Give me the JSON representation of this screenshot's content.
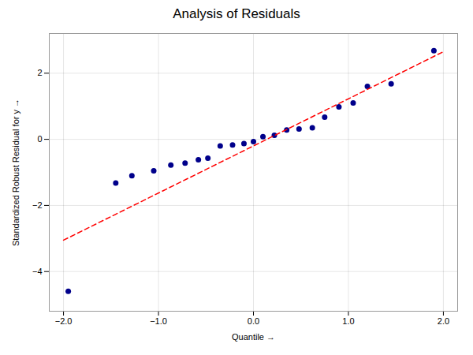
{
  "chart_data": {
    "type": "scatter",
    "title": "Analysis of Residuals",
    "xlabel": "Quantile",
    "ylabel": "Standardized Robust Residual for y",
    "series": [
      {
        "type": "scatter",
        "color": "#00008B",
        "x": [
          -1.95,
          -1.45,
          -1.28,
          -1.05,
          -0.87,
          -0.72,
          -0.58,
          -0.48,
          -0.35,
          -0.22,
          -0.1,
          0.0,
          0.1,
          0.22,
          0.35,
          0.48,
          0.62,
          0.75,
          0.9,
          1.05,
          1.2,
          1.45,
          1.9
        ],
        "values": [
          -4.6,
          -1.32,
          -1.1,
          -0.95,
          -0.78,
          -0.72,
          -0.62,
          -0.57,
          -0.2,
          -0.17,
          -0.13,
          -0.07,
          0.08,
          0.12,
          0.28,
          0.31,
          0.35,
          0.67,
          0.98,
          1.1,
          1.6,
          1.68,
          2.68
        ]
      },
      {
        "type": "line",
        "color": "#FF0000",
        "line_style": "dashed",
        "x": [
          -2.0,
          2.0
        ],
        "values": [
          -3.05,
          2.65
        ]
      }
    ],
    "xlim": [
      -2.15,
      2.15
    ],
    "ylim": [
      -5.2,
      3.2
    ],
    "xticks": [
      -2,
      -1,
      0,
      1,
      2
    ],
    "yticks": [
      -4,
      -2,
      0,
      2
    ],
    "grid": true
  }
}
